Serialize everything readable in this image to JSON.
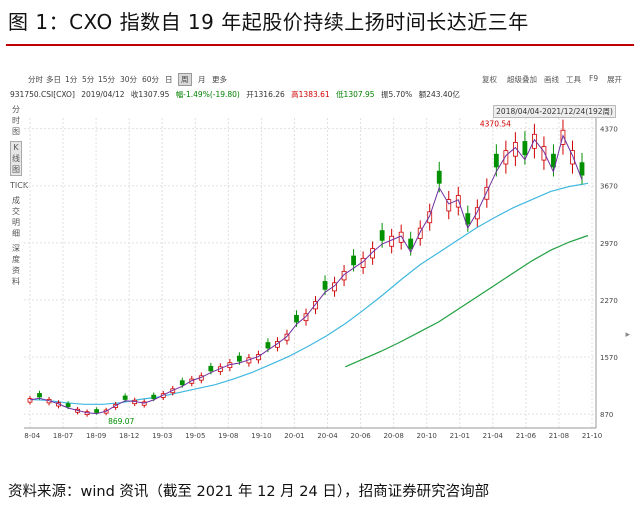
{
  "figure": {
    "title": "图 1：CXO 指数自 19 年起股价持续上扬时间长达近三年",
    "source": "资料来源：wind 资讯（截至 2021 年 12 月 24 日），招商证券研究咨询部"
  },
  "toolbar": {
    "periods": [
      "分时",
      "多日",
      "1分",
      "5分",
      "15分",
      "30分",
      "60分",
      "日",
      "周",
      "月",
      "更多"
    ],
    "active_period": "周",
    "right_items": [
      "复权",
      "超级叠加",
      "画线",
      "工具",
      "F9",
      "展开"
    ]
  },
  "infoline": {
    "code": "931750.CSI[CXO]",
    "date": "2019/04/12",
    "close": "收1307.95",
    "change": "幅-1.49%(-19.80)",
    "open": "开1316.26",
    "high": "高1383.61",
    "low": "低1307.95",
    "amplitude": "振5.70%",
    "amount": "额243.40亿"
  },
  "sidebar": {
    "items": [
      "分时图",
      "K线图",
      "TICK",
      "成交明细",
      "深度资料"
    ],
    "active": "K线图"
  },
  "range_label": "2018/04/04-2021/12/24(192周)",
  "colors": {
    "up": "#d00000",
    "down": "#009000",
    "ma_light_blue": "#40b8e0",
    "ma_green": "#20a040"
  },
  "chart_data": {
    "type": "candlestick",
    "x_ticks": [
      "18-04",
      "18-07",
      "18-09",
      "18-12",
      "19-03",
      "19-05",
      "19-08",
      "19-10",
      "20-01",
      "20-04",
      "20-06",
      "20-08",
      "20-10",
      "21-01",
      "21-04",
      "21-06",
      "21-08",
      "21-10"
    ],
    "y_ticks": [
      870,
      1570,
      2270,
      2970,
      3670,
      4370
    ],
    "ylim": [
      700,
      4500
    ],
    "annotations": [
      {
        "label": "4370.54",
        "x": 0.79,
        "y": 4370.54,
        "color": "#d00000"
      },
      {
        "label": "869.07",
        "x": 0.14,
        "y": 869.07,
        "color": "#009000"
      }
    ],
    "ma_points": [
      {
        "name": "ma_long_blue",
        "values": [
          1050,
          1040,
          1010,
          990,
          990,
          1010,
          1050,
          1080,
          1130,
          1180,
          1230,
          1300,
          1380,
          1480,
          1580,
          1700,
          1830,
          1980,
          2150,
          2330,
          2520,
          2700,
          2850,
          3000,
          3150,
          3280,
          3400,
          3500,
          3600,
          3660,
          3700
        ]
      },
      {
        "name": "ma_long_green",
        "values": [
          null,
          null,
          null,
          null,
          null,
          null,
          null,
          null,
          null,
          null,
          null,
          null,
          null,
          null,
          null,
          null,
          null,
          1450,
          1550,
          1650,
          1760,
          1880,
          2000,
          2150,
          2300,
          2450,
          2600,
          2750,
          2880,
          2980,
          3060
        ]
      }
    ]
  }
}
